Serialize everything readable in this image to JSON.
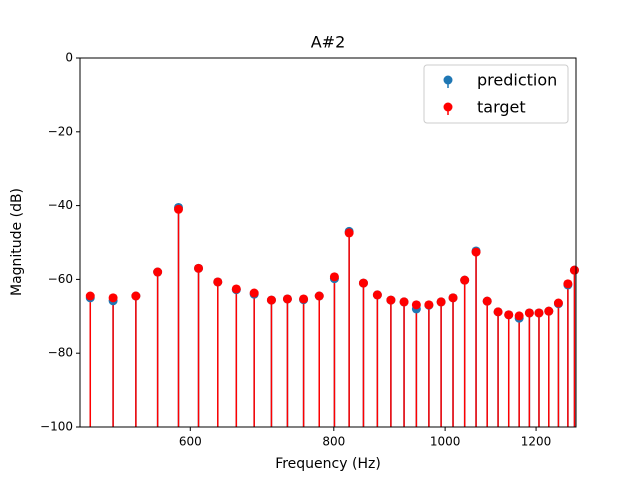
{
  "chart_data": {
    "type": "stem",
    "title": "A#2",
    "x_label": "Frequency (Hz)",
    "y_label": "Magnitude (dB)",
    "x": [
      491,
      514,
      538,
      562,
      586,
      610,
      634,
      658,
      682,
      706,
      729,
      753,
      777,
      801,
      825,
      849,
      873,
      897,
      921,
      944,
      968,
      992,
      1016,
      1040,
      1064,
      1088,
      1112,
      1136,
      1160,
      1184,
      1207,
      1231,
      1255,
      1279,
      1296
    ],
    "series": [
      {
        "name": "prediction",
        "color": "#1f77b4",
        "values": [
          -65,
          -65.8,
          -64.5,
          -58,
          -40.5,
          -57,
          -60.7,
          -62.8,
          -64,
          -65.6,
          -65.3,
          -65.5,
          -64.5,
          -59.8,
          -47,
          -61,
          -64.2,
          -65.6,
          -66.1,
          -68,
          -67,
          -66.1,
          -65,
          -60.2,
          -52.3,
          -65.9,
          -68.8,
          -69.6,
          -70.5,
          -69.1,
          -69.1,
          -68.6,
          -66.6,
          -61.5,
          -57.5
        ]
      },
      {
        "name": "target",
        "color": "#ff0000",
        "values": [
          -64.5,
          -65,
          -64.5,
          -58,
          -41,
          -57,
          -60.7,
          -62.6,
          -63.7,
          -65.6,
          -65.3,
          -65.3,
          -64.5,
          -59.3,
          -47.4,
          -61,
          -64.2,
          -65.6,
          -66.1,
          -66.9,
          -66.9,
          -66.1,
          -65,
          -60.2,
          -52.6,
          -65.9,
          -68.8,
          -69.6,
          -69.9,
          -69.1,
          -69.1,
          -68.6,
          -66.4,
          -61.2,
          -57.5
        ]
      }
    ],
    "xscale": "log",
    "xlim": [
      481,
      1300
    ],
    "xticks": [
      600,
      800,
      1000,
      1200
    ],
    "ylim": [
      -100,
      0
    ],
    "yticks": [
      {
        "value": -100,
        "label": "−100"
      },
      {
        "value": -80,
        "label": "−80"
      },
      {
        "value": -60,
        "label": "−60"
      },
      {
        "value": -40,
        "label": "−40"
      },
      {
        "value": -20,
        "label": "−20"
      },
      0
    ],
    "legend": "upper right",
    "grid": false
  }
}
